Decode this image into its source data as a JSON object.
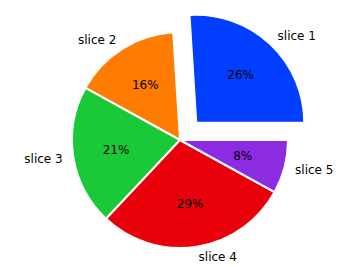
{
  "chart_data": {
    "type": "pie",
    "categories": [
      "slice 1",
      "slice 2",
      "slice 3",
      "slice 4",
      "slice 5"
    ],
    "values": [
      26,
      16,
      21,
      29,
      8
    ],
    "value_labels": [
      "26%",
      "16%",
      "21%",
      "29%",
      "8%"
    ],
    "colors": [
      "#023eff",
      "#ff7c00",
      "#1ac938",
      "#e8000b",
      "#8b2be2"
    ],
    "data_labels": true
  }
}
